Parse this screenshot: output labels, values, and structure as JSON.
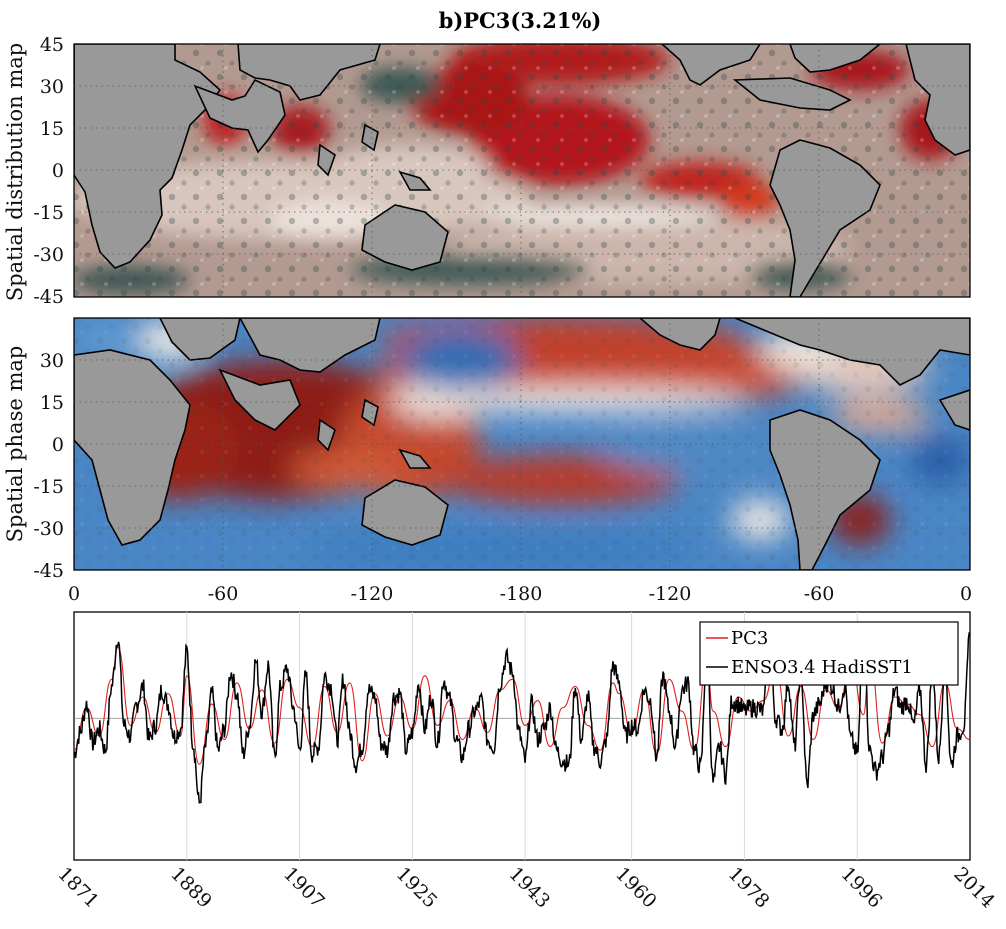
{
  "title_prefix": "b)",
  "title_main": "PC3(3.21%)",
  "colors": {
    "land": "#999999",
    "warm": "#b0181c",
    "cool": "#2e6fb8",
    "neutral": "#e6d8cf",
    "dark": "#2e4a47",
    "pc_line": "#e02020",
    "enso_line": "#000000"
  },
  "maps": [
    {
      "ylabel": "Spatial distribution map",
      "lat_ticks": [
        "45",
        "30",
        "15",
        "0",
        "-15",
        "-30",
        "-45"
      ]
    },
    {
      "ylabel": "Spatial phase map",
      "lat_ticks": [
        "30",
        "15",
        "0",
        "-15",
        "-30",
        "-45"
      ]
    }
  ],
  "lon_ticks": [
    "0",
    "-60",
    "-120",
    "-180",
    "-120",
    "-60",
    "0"
  ],
  "chart_data": {
    "type": "line",
    "title": "",
    "xlabel": "",
    "ylabel": "",
    "xlim": [
      1871,
      2014
    ],
    "x_tick_labels": [
      "1871",
      "1889",
      "1907",
      "1925",
      "1943",
      "1960",
      "1978",
      "1996",
      "2014"
    ],
    "x_ticks": [
      1871,
      1889,
      1907,
      1925,
      1943,
      1960,
      1978,
      1996,
      2014
    ],
    "ylim": [
      -4,
      3
    ],
    "grid": true,
    "legend_position": "top-right",
    "series": [
      {
        "name": "PC3",
        "color": "#e02020",
        "x": [
          1871,
          1873,
          1875,
          1877,
          1878,
          1880,
          1882,
          1884,
          1886,
          1888,
          1889,
          1891,
          1893,
          1895,
          1897,
          1899,
          1901,
          1903,
          1905,
          1907,
          1909,
          1911,
          1913,
          1915,
          1917,
          1919,
          1921,
          1923,
          1925,
          1927,
          1929,
          1931,
          1933,
          1935,
          1937,
          1939,
          1941,
          1943,
          1945,
          1947,
          1949,
          1951,
          1953,
          1955,
          1957,
          1958,
          1960,
          1962,
          1964,
          1966,
          1968,
          1970,
          1972,
          1973,
          1975,
          1977,
          1979,
          1981,
          1983,
          1985,
          1987,
          1989,
          1991,
          1993,
          1995,
          1997,
          1998,
          2000,
          2002,
          2004,
          2006,
          2008,
          2010,
          2012,
          2014
        ],
        "y": [
          -0.9,
          0.3,
          -0.5,
          1.1,
          2.0,
          -0.2,
          0.6,
          -0.4,
          0.7,
          -0.5,
          1.2,
          -1.3,
          0.4,
          -0.6,
          1.0,
          -0.3,
          0.8,
          -0.7,
          1.1,
          0.3,
          -0.8,
          0.9,
          -0.4,
          1.0,
          -1.2,
          0.7,
          -0.5,
          0.6,
          -0.3,
          1.2,
          -0.2,
          0.5,
          -0.6,
          0.3,
          -0.4,
          0.8,
          1.1,
          -0.2,
          0.5,
          -0.8,
          0.3,
          0.9,
          -0.2,
          -0.9,
          1.0,
          0.7,
          -0.4,
          0.8,
          -1.0,
          1.1,
          0.2,
          -0.9,
          1.5,
          0.2,
          -0.8,
          0.6,
          0.2,
          0.5,
          1.4,
          -0.5,
          0.9,
          -0.6,
          0.8,
          0.3,
          1.6,
          0.1,
          1.8,
          -0.7,
          0.6,
          0.4,
          0.1,
          -0.8,
          1.0,
          -0.3,
          -0.6
        ]
      },
      {
        "name": "ENSO3.4 HadiSST1",
        "color": "#000000",
        "x": [
          1871,
          1872,
          1873,
          1874,
          1875,
          1876,
          1877,
          1878,
          1879,
          1880,
          1881,
          1882,
          1883,
          1884,
          1885,
          1886,
          1887,
          1888,
          1889,
          1890,
          1891,
          1892,
          1893,
          1894,
          1895,
          1896,
          1897,
          1898,
          1899,
          1900,
          1901,
          1902,
          1903,
          1904,
          1905,
          1906,
          1907,
          1908,
          1909,
          1910,
          1911,
          1912,
          1913,
          1914,
          1915,
          1916,
          1917,
          1918,
          1919,
          1920,
          1921,
          1922,
          1923,
          1924,
          1925,
          1926,
          1927,
          1928,
          1929,
          1930,
          1931,
          1932,
          1933,
          1934,
          1935,
          1936,
          1937,
          1938,
          1939,
          1940,
          1941,
          1942,
          1943,
          1944,
          1945,
          1946,
          1947,
          1948,
          1949,
          1950,
          1951,
          1952,
          1953,
          1954,
          1955,
          1956,
          1957,
          1958,
          1959,
          1960,
          1961,
          1962,
          1963,
          1964,
          1965,
          1966,
          1967,
          1968,
          1969,
          1970,
          1971,
          1972,
          1973,
          1974,
          1975,
          1976,
          1977,
          1978,
          1979,
          1980,
          1981,
          1982,
          1983,
          1984,
          1985,
          1986,
          1987,
          1988,
          1989,
          1990,
          1991,
          1992,
          1993,
          1994,
          1995,
          1996,
          1997,
          1998,
          1999,
          2000,
          2001,
          2002,
          2003,
          2004,
          2005,
          2006,
          2007,
          2008,
          2009,
          2010,
          2011,
          2012,
          2013,
          2014
        ],
        "y": [
          -1.0,
          -0.4,
          0.4,
          -0.7,
          -0.3,
          -0.9,
          0.9,
          2.3,
          -0.2,
          -0.5,
          0.4,
          0.9,
          -0.6,
          -0.2,
          0.8,
          0.4,
          -0.5,
          -0.3,
          1.9,
          -0.7,
          -2.4,
          -0.8,
          0.7,
          -0.9,
          -0.3,
          1.3,
          0.7,
          -1.0,
          -0.2,
          1.6,
          0.2,
          1.5,
          -1.1,
          0.9,
          1.4,
          0.3,
          -0.9,
          1.2,
          -1.0,
          -0.8,
          1.2,
          0.9,
          -0.6,
          1.1,
          -0.4,
          -1.3,
          -0.8,
          0.8,
          0.6,
          -0.7,
          -0.9,
          0.6,
          0.7,
          -0.9,
          -0.4,
          1.0,
          -0.3,
          0.6,
          -0.7,
          1.1,
          0.5,
          -0.6,
          -1.1,
          -0.3,
          0.2,
          0.5,
          -0.6,
          -0.8,
          1.0,
          1.7,
          1.3,
          -0.4,
          -1.2,
          0.4,
          -0.6,
          -0.3,
          0.3,
          -0.9,
          -1.2,
          -1.3,
          0.9,
          -0.6,
          0.6,
          -0.8,
          -1.2,
          -0.6,
          1.5,
          1.0,
          -0.5,
          -0.2,
          -0.3,
          0.8,
          0.5,
          -1.1,
          1.2,
          0.2,
          -0.8,
          0.8,
          1.0,
          -0.9,
          -1.4,
          2.0,
          -1.8,
          -0.8,
          -1.6,
          0.5,
          0.4,
          0.2,
          0.3,
          0.3,
          0.2,
          2.2,
          0.0,
          -0.3,
          1.0,
          -0.8,
          1.4,
          -1.9,
          0.1,
          0.4,
          1.0,
          0.9,
          0.3,
          0.9,
          -0.6,
          -1.0,
          2.4,
          -0.9,
          -1.5,
          -1.1,
          -0.3,
          0.8,
          0.3,
          0.5,
          -0.2,
          0.8,
          -1.3,
          1.4,
          -1.1,
          1.6,
          -1.3,
          -0.5,
          -0.2,
          2.4
        ]
      }
    ]
  }
}
